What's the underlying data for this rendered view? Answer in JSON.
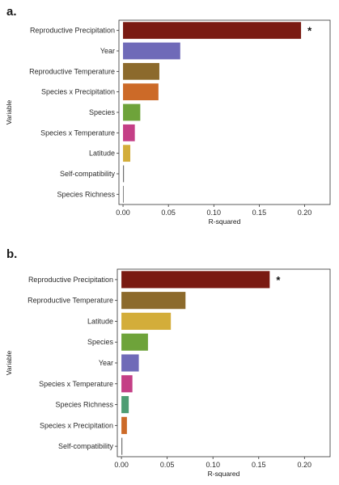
{
  "chart_data": [
    {
      "panel": "a.",
      "type": "bar",
      "orientation": "horizontal",
      "categories": [
        "Reproductive Precipitation",
        "Year",
        "Reproductive Temperature",
        "Species x Precipitation",
        "Species",
        "Species x Temperature",
        "Latitude",
        "Self-compatibility",
        "Species Richness"
      ],
      "values": [
        0.196,
        0.063,
        0.04,
        0.039,
        0.019,
        0.013,
        0.008,
        0.001,
        0.0005
      ],
      "colors": [
        "#7a1a12",
        "#6f6ab8",
        "#8c6a2c",
        "#cc6a28",
        "#6ea33a",
        "#c43f86",
        "#d3ad3a",
        "#666666",
        "#666666"
      ],
      "annotations": [
        "*",
        "",
        "",
        "",
        "",
        "",
        "",
        "",
        ""
      ],
      "xlabel": "R-squared",
      "ylabel": "Variable",
      "xticks": [
        "0.00",
        "0.05",
        "0.10",
        "0.15",
        "0.20"
      ],
      "xlim": [
        -0.0045,
        0.228
      ],
      "grid": false
    },
    {
      "panel": "b.",
      "type": "bar",
      "orientation": "horizontal",
      "categories": [
        "Reproductive Precipitation",
        "Reproductive Temperature",
        "Latitude",
        "Species",
        "Year",
        "Species x Temperature",
        "Species Richness",
        "Species x Precipitation",
        "Self-compatibility"
      ],
      "values": [
        0.162,
        0.07,
        0.054,
        0.029,
        0.019,
        0.012,
        0.008,
        0.006,
        0.001
      ],
      "colors": [
        "#7a1a12",
        "#8c6a2c",
        "#d3ad3a",
        "#6ea33a",
        "#6f6ab8",
        "#c43f86",
        "#4e9d73",
        "#cc6a28",
        "#666666"
      ],
      "annotations": [
        "*",
        "",
        "",
        "",
        "",
        "",
        "",
        "",
        ""
      ],
      "xlabel": "R-squared",
      "ylabel": "Variable",
      "xticks": [
        "0.00",
        "0.05",
        "0.10",
        "0.15",
        "0.20"
      ],
      "xlim": [
        -0.0045,
        0.228
      ],
      "grid": false
    }
  ]
}
